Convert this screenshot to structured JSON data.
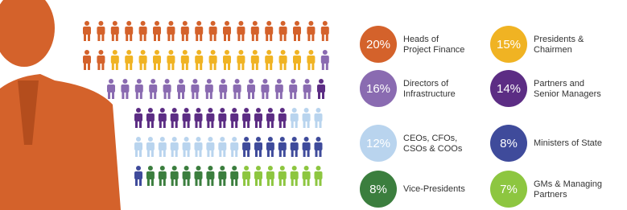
{
  "chart_data": {
    "type": "pictogram",
    "categories": [
      [
        "Heads of",
        "Project Finance"
      ],
      [
        "Presidents &",
        "Chairmen"
      ],
      [
        "Directors of",
        "Infrastructure"
      ],
      [
        "Partners and",
        "Senior Managers"
      ],
      [
        "CEOs, CFOs,",
        "CSOs & COOs"
      ],
      [
        "Ministers of State"
      ],
      [
        "Vice-Presidents"
      ],
      [
        "GMs & Managing",
        "Partners"
      ]
    ],
    "values": [
      20,
      15,
      16,
      14,
      12,
      8,
      8,
      7
    ],
    "value_labels": [
      "20%",
      "15%",
      "16%",
      "14%",
      "12%",
      "8%",
      "8%",
      "7%"
    ],
    "colors": [
      "#d4622b",
      "#f0b323",
      "#8a6bb1",
      "#5c2d84",
      "#b9d4ee",
      "#3f4b9b",
      "#3b7e3e",
      "#8dc640"
    ]
  }
}
